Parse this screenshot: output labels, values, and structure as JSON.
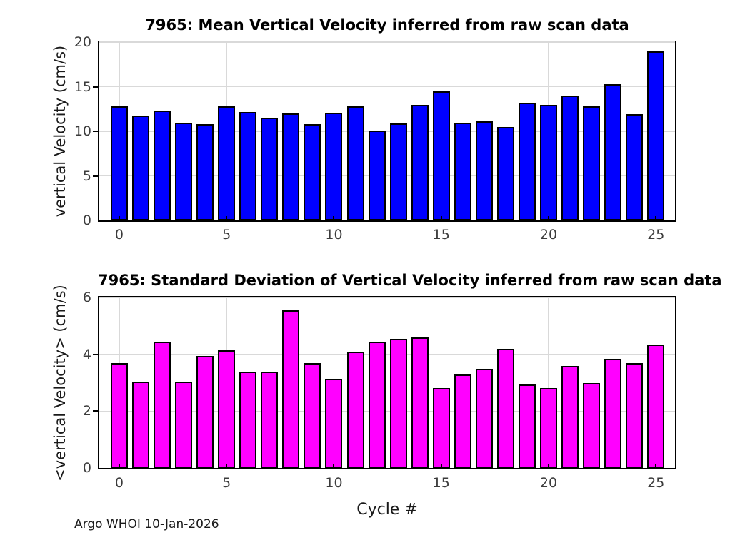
{
  "page": {
    "xlabel": "Cycle #",
    "footer": "Argo WHOI 10-Jan-2026",
    "background_color": "#ffffff",
    "grid_color": "#d9d9d9",
    "axis_color": "#000000"
  },
  "chart_data": [
    {
      "type": "bar",
      "title": "7965: Mean Vertical Velocity inferred from raw scan data",
      "ylabel": "vertical Velocity (cm/s)",
      "xlabel": "",
      "categories": [
        0,
        1,
        2,
        3,
        4,
        5,
        6,
        7,
        8,
        9,
        10,
        11,
        12,
        13,
        14,
        15,
        16,
        17,
        18,
        19,
        20,
        21,
        22,
        23,
        24,
        25
      ],
      "values": [
        12.8,
        11.8,
        12.3,
        11.0,
        10.8,
        12.8,
        12.2,
        11.5,
        12.0,
        10.8,
        12.1,
        12.8,
        10.1,
        10.9,
        13.0,
        14.5,
        11.0,
        11.1,
        10.5,
        13.2,
        13.0,
        14.0,
        12.8,
        15.3,
        11.9,
        19.0
      ],
      "ylim": [
        0,
        20
      ],
      "yticks": [
        0,
        5,
        10,
        15,
        20
      ],
      "xticks": [
        0,
        5,
        10,
        15,
        20,
        25
      ],
      "xlim": [
        -0.93,
        25.89
      ],
      "bar_width": 0.8,
      "bar_color": "#0000ff",
      "bar_edge_color": "#000000",
      "grid": true,
      "legend": "none"
    },
    {
      "type": "bar",
      "title": "7965: Standard Deviation of Vertical Velocity inferred from raw scan data",
      "ylabel": "<vertical Velocity> (cm/s)",
      "xlabel": "Cycle #",
      "categories": [
        0,
        1,
        2,
        3,
        4,
        5,
        6,
        7,
        8,
        9,
        10,
        11,
        12,
        13,
        14,
        15,
        16,
        17,
        18,
        19,
        20,
        21,
        22,
        23,
        24,
        25
      ],
      "values": [
        3.7,
        3.05,
        4.45,
        3.05,
        3.95,
        4.15,
        3.4,
        3.4,
        5.55,
        3.7,
        3.15,
        4.1,
        4.45,
        4.55,
        4.6,
        2.8,
        3.3,
        3.5,
        4.2,
        2.95,
        2.8,
        3.6,
        3.0,
        3.85,
        3.7,
        4.35
      ],
      "ylim": [
        0,
        6
      ],
      "yticks": [
        0,
        2,
        4,
        6
      ],
      "xticks": [
        0,
        5,
        10,
        15,
        20,
        25
      ],
      "xlim": [
        -0.93,
        25.89
      ],
      "bar_width": 0.8,
      "bar_color": "#ff00ff",
      "bar_edge_color": "#000000",
      "grid": true,
      "legend": "none"
    }
  ]
}
